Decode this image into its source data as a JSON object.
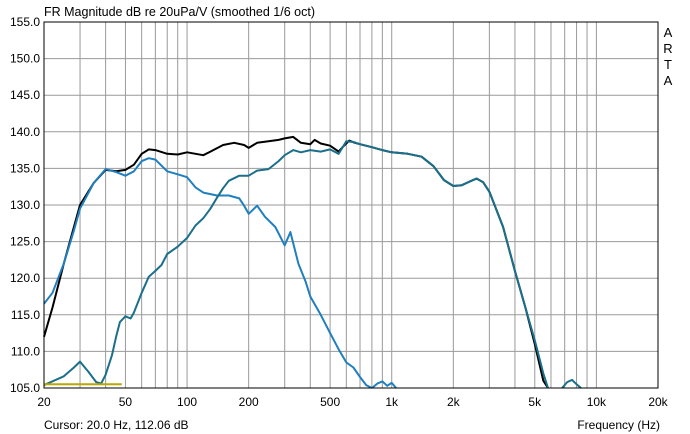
{
  "chart_data": {
    "type": "line",
    "title": "FR Magnitude dB re 20uPa/V (smoothed 1/6 oct)",
    "xlabel": "Frequency (Hz)",
    "ylabel": "",
    "watermark": "ARTA",
    "cursor_text": "Cursor: 20.0 Hz, 112.06 dB",
    "x_scale": "log",
    "xlim": [
      20,
      20000
    ],
    "ylim": [
      105,
      155
    ],
    "grid": true,
    "x_ticks": [
      {
        "value": 20,
        "label": "20"
      },
      {
        "value": 50,
        "label": "50"
      },
      {
        "value": 100,
        "label": "100"
      },
      {
        "value": 200,
        "label": "200"
      },
      {
        "value": 500,
        "label": "500"
      },
      {
        "value": 1000,
        "label": "1k"
      },
      {
        "value": 2000,
        "label": "2k"
      },
      {
        "value": 5000,
        "label": "5k"
      },
      {
        "value": 10000,
        "label": "10k"
      },
      {
        "value": 20000,
        "label": "20k"
      }
    ],
    "y_ticks": [
      {
        "value": 155,
        "label": "155.0"
      },
      {
        "value": 150,
        "label": "150.0"
      },
      {
        "value": 145,
        "label": "145.0"
      },
      {
        "value": 140,
        "label": "140.0"
      },
      {
        "value": 135,
        "label": "135.0"
      },
      {
        "value": 130,
        "label": "130.0"
      },
      {
        "value": 125,
        "label": "125.0"
      },
      {
        "value": 120,
        "label": "120.0"
      },
      {
        "value": 115,
        "label": "115.0"
      },
      {
        "value": 110,
        "label": "110.0"
      },
      {
        "value": 105,
        "label": "105.0"
      }
    ],
    "series": [
      {
        "color": "#000000",
        "points": [
          [
            20,
            112
          ],
          [
            22,
            116
          ],
          [
            25,
            122
          ],
          [
            28,
            127
          ],
          [
            30,
            130
          ],
          [
            35,
            133
          ],
          [
            40,
            134.8
          ],
          [
            45,
            134.6
          ],
          [
            50,
            134.8
          ],
          [
            55,
            135.5
          ],
          [
            60,
            137
          ],
          [
            65,
            137.6
          ],
          [
            70,
            137.5
          ],
          [
            80,
            137
          ],
          [
            90,
            136.9
          ],
          [
            100,
            137.2
          ],
          [
            110,
            137
          ],
          [
            120,
            136.8
          ],
          [
            130,
            137.3
          ],
          [
            150,
            138.2
          ],
          [
            170,
            138.5
          ],
          [
            190,
            138.2
          ],
          [
            200,
            137.8
          ],
          [
            220,
            138.5
          ],
          [
            250,
            138.7
          ],
          [
            280,
            138.9
          ],
          [
            300,
            139.1
          ],
          [
            330,
            139.3
          ],
          [
            360,
            138.5
          ],
          [
            400,
            138.3
          ],
          [
            420,
            138.9
          ],
          [
            450,
            138.4
          ],
          [
            500,
            138.1
          ],
          [
            550,
            137.3
          ],
          [
            580,
            138
          ],
          [
            620,
            138.8
          ],
          [
            660,
            138.5
          ],
          [
            700,
            138.3
          ],
          [
            800,
            137.9
          ],
          [
            900,
            137.5
          ],
          [
            1000,
            137.2
          ],
          [
            1200,
            137
          ],
          [
            1400,
            136.6
          ],
          [
            1600,
            135.3
          ],
          [
            1800,
            133.4
          ],
          [
            2000,
            132.6
          ],
          [
            2200,
            132.7
          ],
          [
            2400,
            133.2
          ],
          [
            2600,
            133.6
          ],
          [
            2800,
            133.1
          ],
          [
            3000,
            131.8
          ],
          [
            3500,
            127
          ],
          [
            4000,
            121
          ],
          [
            4500,
            116
          ],
          [
            5000,
            111
          ],
          [
            5500,
            106
          ],
          [
            5800,
            103
          ]
        ]
      },
      {
        "color": "#1f7fbf",
        "points": [
          [
            20,
            116.5
          ],
          [
            22,
            118
          ],
          [
            25,
            122
          ],
          [
            28,
            126.5
          ],
          [
            30,
            129.5
          ],
          [
            35,
            133
          ],
          [
            40,
            134.9
          ],
          [
            45,
            134.5
          ],
          [
            50,
            134
          ],
          [
            55,
            134.6
          ],
          [
            60,
            136
          ],
          [
            65,
            136.4
          ],
          [
            70,
            136.2
          ],
          [
            80,
            134.6
          ],
          [
            90,
            134.2
          ],
          [
            100,
            133.8
          ],
          [
            110,
            132.4
          ],
          [
            120,
            131.7
          ],
          [
            140,
            131.3
          ],
          [
            160,
            131.3
          ],
          [
            180,
            130.9
          ],
          [
            190,
            129.9
          ],
          [
            200,
            128.8
          ],
          [
            220,
            129.9
          ],
          [
            240,
            128.4
          ],
          [
            270,
            127
          ],
          [
            300,
            124.5
          ],
          [
            320,
            126.3
          ],
          [
            350,
            122
          ],
          [
            380,
            119.5
          ],
          [
            400,
            117.5
          ],
          [
            450,
            115
          ],
          [
            500,
            112.5
          ],
          [
            550,
            110.3
          ],
          [
            600,
            108.5
          ],
          [
            650,
            107.8
          ],
          [
            700,
            106.5
          ],
          [
            750,
            105.4
          ],
          [
            800,
            104
          ]
        ]
      },
      {
        "color": "#1a6f8a",
        "points": [
          [
            20,
            105.4
          ],
          [
            25,
            106.6
          ],
          [
            28,
            107.8
          ],
          [
            30,
            108.6
          ],
          [
            33,
            107.2
          ],
          [
            36,
            105.8
          ],
          [
            38,
            105.6
          ],
          [
            40,
            106.8
          ],
          [
            43,
            109.5
          ],
          [
            45,
            112
          ],
          [
            47,
            114
          ],
          [
            50,
            114.8
          ],
          [
            53,
            114.5
          ],
          [
            55,
            115.3
          ],
          [
            60,
            118
          ],
          [
            65,
            120.2
          ],
          [
            70,
            121
          ],
          [
            75,
            121.8
          ],
          [
            80,
            123.3
          ],
          [
            90,
            124.3
          ],
          [
            100,
            125.5
          ],
          [
            110,
            127.2
          ],
          [
            120,
            128.2
          ],
          [
            130,
            129.5
          ],
          [
            140,
            131
          ],
          [
            150,
            132.3
          ],
          [
            160,
            133.3
          ],
          [
            180,
            134
          ],
          [
            200,
            134
          ],
          [
            220,
            134.7
          ],
          [
            250,
            134.9
          ],
          [
            280,
            136
          ],
          [
            300,
            136.8
          ],
          [
            330,
            137.5
          ],
          [
            360,
            137.2
          ],
          [
            400,
            137.5
          ],
          [
            450,
            137.3
          ],
          [
            500,
            137.6
          ],
          [
            550,
            137
          ],
          [
            600,
            138.7
          ],
          [
            650,
            138.6
          ],
          [
            700,
            138.3
          ],
          [
            800,
            137.9
          ],
          [
            900,
            137.5
          ],
          [
            1000,
            137.2
          ],
          [
            1200,
            137
          ],
          [
            1400,
            136.6
          ],
          [
            1600,
            135.3
          ],
          [
            1800,
            133.4
          ],
          [
            2000,
            132.6
          ],
          [
            2200,
            132.7
          ],
          [
            2400,
            133.2
          ],
          [
            2600,
            133.6
          ],
          [
            2800,
            133.1
          ],
          [
            3000,
            131.8
          ],
          [
            3500,
            127
          ],
          [
            4000,
            121
          ],
          [
            4500,
            116
          ],
          [
            5000,
            111.5
          ],
          [
            5500,
            107
          ],
          [
            5800,
            104
          ]
        ]
      },
      {
        "color": "#1f7fbf",
        "points": [
          [
            800,
            104.8
          ],
          [
            850,
            105.6
          ],
          [
            900,
            105.9
          ],
          [
            950,
            105.3
          ],
          [
            1000,
            105.7
          ],
          [
            1050,
            104.6
          ]
        ]
      },
      {
        "color": "#1a6f8a",
        "points": [
          [
            6800,
            104.4
          ],
          [
            7200,
            105.8
          ],
          [
            7600,
            106.1
          ],
          [
            8000,
            105.5
          ],
          [
            8400,
            104.3
          ]
        ]
      },
      {
        "color": "#b8a800",
        "points": [
          [
            20,
            105.5
          ],
          [
            48,
            105.5
          ]
        ]
      }
    ]
  }
}
